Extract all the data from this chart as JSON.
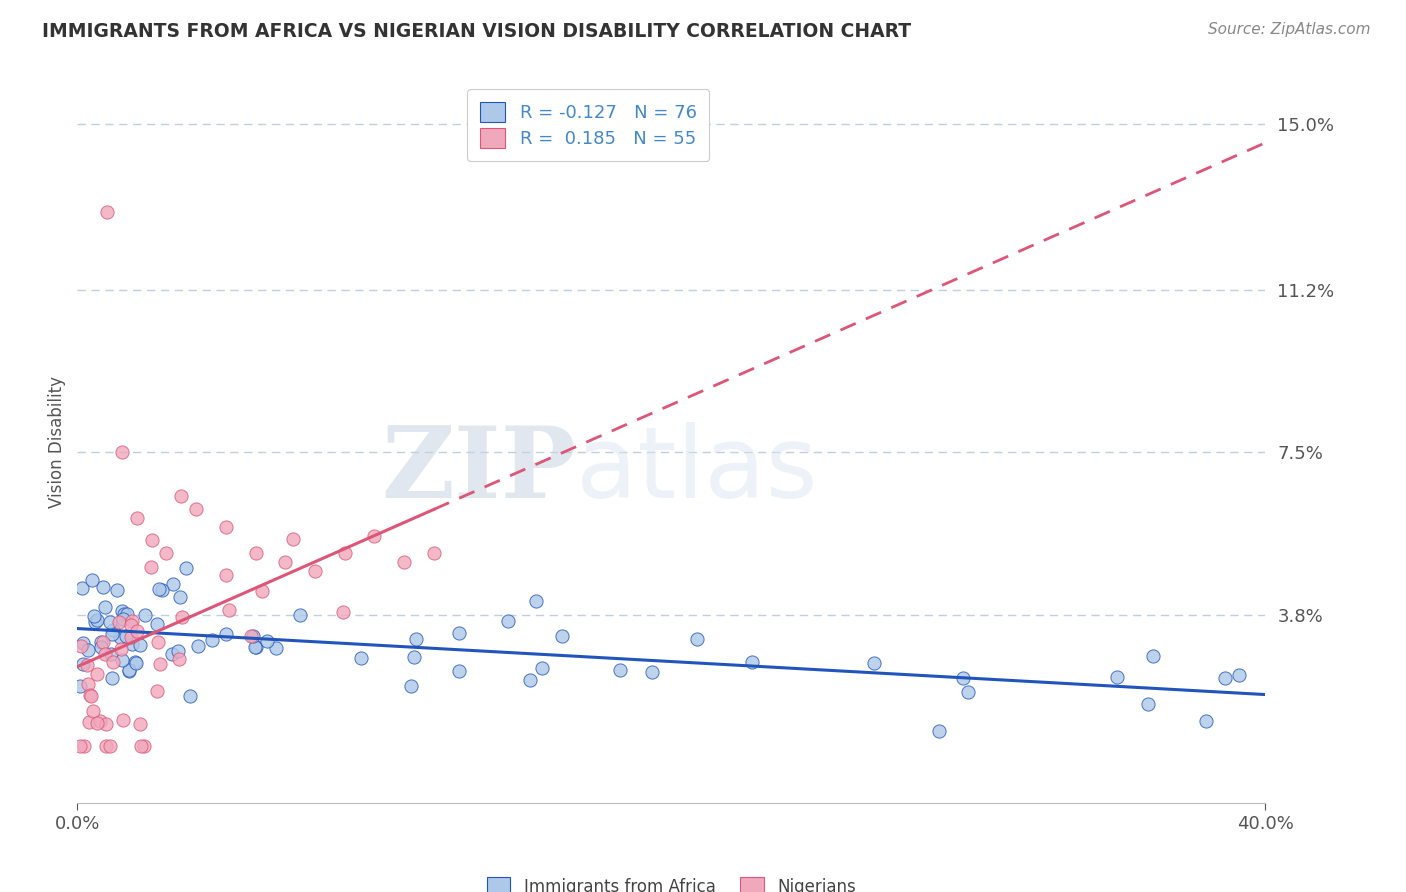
{
  "title": "IMMIGRANTS FROM AFRICA VS NIGERIAN VISION DISABILITY CORRELATION CHART",
  "source": "Source: ZipAtlas.com",
  "xlabel_series1": "Immigrants from Africa",
  "xlabel_series2": "Nigerians",
  "ylabel": "Vision Disability",
  "R1": -0.127,
  "N1": 76,
  "R2": 0.185,
  "N2": 55,
  "color_series1": "#adc8e8",
  "color_series2": "#f0a8bc",
  "line_color1": "#2255bb",
  "line_color2": "#dd5577",
  "xlim": [
    0.0,
    0.4
  ],
  "ylim": [
    -0.005,
    0.16
  ],
  "yticks": [
    0.038,
    0.075,
    0.112,
    0.15
  ],
  "ytick_labels": [
    "3.8%",
    "7.5%",
    "11.2%",
    "15.0%"
  ],
  "xticks": [
    0.0,
    0.4
  ],
  "xtick_labels": [
    "0.0%",
    "40.0%"
  ],
  "watermark_zip": "ZIP",
  "watermark_atlas": "atlas",
  "background_color": "#ffffff",
  "grid_color": "#c0d0e0",
  "title_color": "#333333",
  "source_color": "#888888",
  "tick_color": "#4488cc"
}
